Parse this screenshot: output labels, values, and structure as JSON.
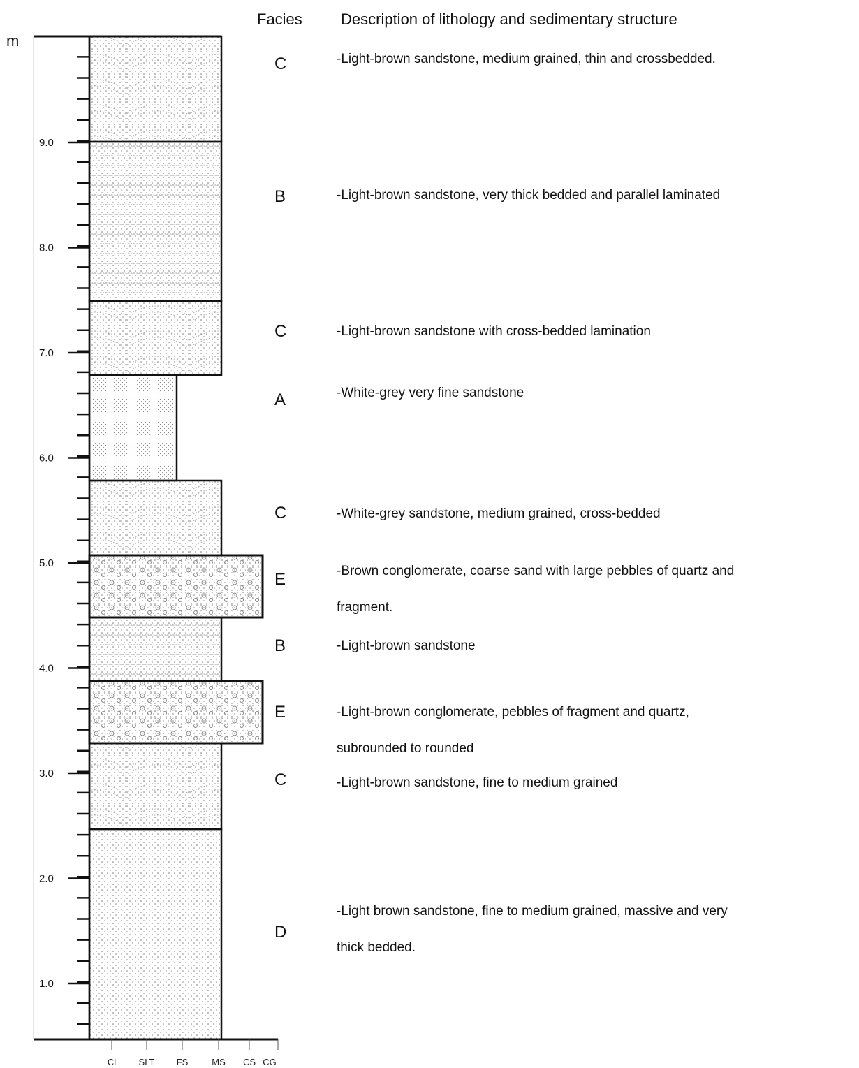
{
  "header": {
    "unit": "m",
    "facies_heading": "Facies",
    "description_heading": "Description of lithology and sedimentary structure"
  },
  "depth_labels": [
    "9.0",
    "8.0",
    "7.0",
    "6.0",
    "5.0",
    "4.0",
    "3.0",
    "2.0",
    "1.0"
  ],
  "grain_sizes": [
    "Cl",
    "SLT",
    "FS",
    "MS",
    "CS",
    "CG"
  ],
  "units": [
    {
      "facies": "C",
      "description": [
        "-Light-brown sandstone, medium grained, thin and crossbedded."
      ]
    },
    {
      "facies": "B",
      "description": [
        "-Light-brown sandstone, very thick bedded and parallel laminated"
      ]
    },
    {
      "facies": "C",
      "description": [
        "-Light-brown sandstone with cross-bedded lamination"
      ]
    },
    {
      "facies": "A",
      "description": [
        "-White-grey very fine sandstone"
      ]
    },
    {
      "facies": "C",
      "description": [
        "-White-grey sandstone, medium grained, cross-bedded"
      ]
    },
    {
      "facies": "E",
      "description": [
        "-Brown conglomerate, coarse sand with large pebbles of quartz and",
        "fragment."
      ]
    },
    {
      "facies": "B",
      "description": [
        "-Light-brown sandstone"
      ]
    },
    {
      "facies": "E",
      "description": [
        "-Light-brown conglomerate, pebbles of fragment and quartz,",
        "subrounded to rounded"
      ]
    },
    {
      "facies": "C",
      "description": [
        "-Light-brown sandstone, fine to medium grained"
      ]
    },
    {
      "facies": "D",
      "description": [
        "-Light brown sandstone, fine to medium grained, massive and very",
        "thick bedded."
      ]
    }
  ]
}
